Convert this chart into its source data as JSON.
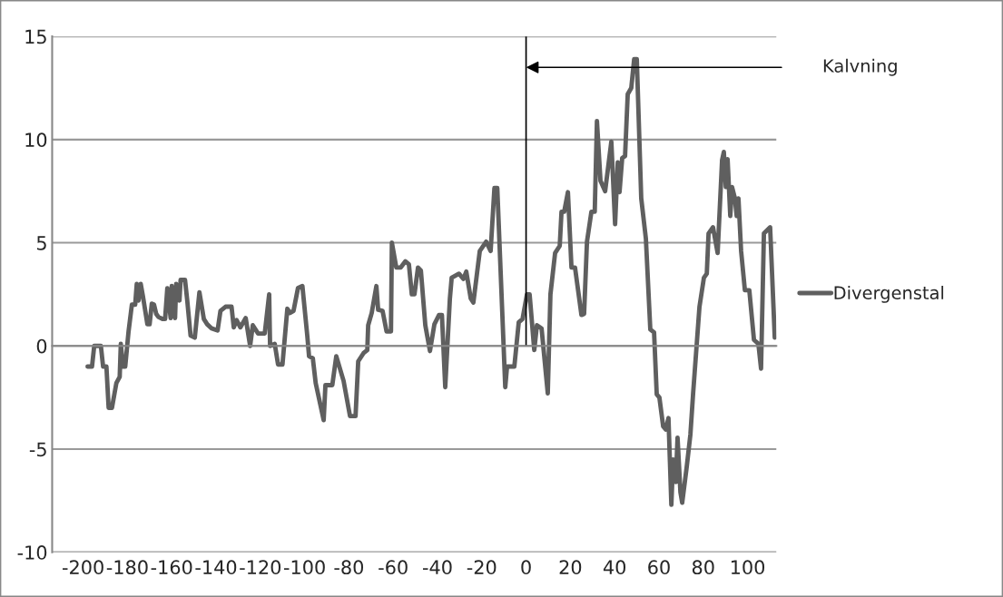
{
  "chart_data": {
    "type": "line",
    "x": [
      -198,
      -196,
      -195,
      -192,
      -191,
      -189.5,
      -188.5,
      -187,
      -185,
      -183.5,
      -183,
      -182,
      -181,
      -179.5,
      -178,
      -176.5,
      -175.8,
      -175,
      -174,
      -173,
      -171,
      -170,
      -169,
      -168,
      -167,
      -166,
      -164,
      -163,
      -162,
      -160.5,
      -160,
      -158.5,
      -158,
      -156.5,
      -156,
      -154,
      -153,
      -151.5,
      -149.6,
      -147.5,
      -145.5,
      -144,
      -142,
      -139.3,
      -138,
      -135.7,
      -133,
      -132,
      -130.7,
      -129,
      -126.6,
      -124.6,
      -123.4,
      -121,
      -118,
      -116,
      -115.6,
      -113.5,
      -112,
      -110,
      -107.8,
      -106.6,
      -105,
      -103,
      -101,
      -98.8,
      -98,
      -96.3,
      -95,
      -91.4,
      -90.6,
      -87.5,
      -85.7,
      -82.4,
      -79.5,
      -77,
      -75.8,
      -73.4,
      -71.7,
      -71.3,
      -69.7,
      -67.6,
      -66.8,
      -64.8,
      -63,
      -61,
      -60.6,
      -58.6,
      -56.6,
      -54.5,
      -52.9,
      -51.6,
      -50.4,
      -48.8,
      -47.5,
      -45.5,
      -43.4,
      -41.4,
      -39.3,
      -38,
      -36.5,
      -34.4,
      -33.6,
      -30.3,
      -28.3,
      -27,
      -25,
      -23.8,
      -20.9,
      -18,
      -16,
      -14.3,
      -13,
      -9.4,
      -8.6,
      -5.3,
      -3.3,
      -1.6,
      0.4,
      1.6,
      3.7,
      4.9,
      7,
      9.8,
      11,
      13.1,
      15.2,
      16,
      17.2,
      18.9,
      20.5,
      22.1,
      25,
      26.2,
      27.5,
      29.5,
      31,
      32,
      33.6,
      35.7,
      38.5,
      40.2,
      41.4,
      42.2,
      43.4,
      44.7,
      45.9,
      47.5,
      48.8,
      50,
      52,
      54.1,
      56.1,
      57.8,
      59,
      60.2,
      61.9,
      63.1,
      64.3,
      65.6,
      66.4,
      67.6,
      68.4,
      69.7,
      70.5,
      72.5,
      74.2,
      75.4,
      78.3,
      80.3,
      81.6,
      82.4,
      84.4,
      86.5,
      88.5,
      89.3,
      90.2,
      91,
      92.2,
      93,
      94.3,
      95.1,
      95.9,
      97.1,
      98.8,
      100.8,
      102.9,
      104.9,
      106.1,
      107.4,
      110.2,
      112.3
    ],
    "series": [
      {
        "name": "Divergenstal",
        "color": "#5f5f5f",
        "values": [
          -1.0,
          -1.0,
          0,
          0,
          -1.0,
          -1.0,
          -3.0,
          -3.0,
          -1.8,
          -1.5,
          0.1,
          -1.0,
          -1.0,
          0.7,
          2.0,
          2.0,
          3.0,
          2.2,
          3.0,
          2.4,
          1.05,
          1.05,
          2.05,
          2.0,
          1.55,
          1.4,
          1.3,
          1.3,
          2.8,
          1.35,
          2.9,
          1.35,
          3.0,
          2.2,
          3.2,
          3.2,
          2.2,
          0.5,
          0.4,
          2.6,
          1.3,
          1.05,
          0.85,
          0.75,
          1.7,
          1.9,
          1.9,
          0.9,
          1.25,
          0.9,
          1.35,
          0,
          1.0,
          0.6,
          0.6,
          2.5,
          0,
          0.1,
          -0.9,
          -0.9,
          1.8,
          1.6,
          1.7,
          2.8,
          2.9,
          0.5,
          -0.5,
          -0.6,
          -1.8,
          -3.6,
          -1.9,
          -1.9,
          -0.5,
          -1.7,
          -3.4,
          -3.4,
          -0.75,
          -0.35,
          -0.2,
          1.0,
          1.6,
          2.9,
          1.75,
          1.7,
          0.7,
          0.7,
          5.0,
          3.8,
          3.8,
          4.1,
          3.95,
          2.5,
          2.5,
          3.8,
          3.65,
          1.0,
          -0.25,
          1.05,
          1.5,
          1.5,
          -2.0,
          2.3,
          3.3,
          3.5,
          3.25,
          3.6,
          2.3,
          2.1,
          4.6,
          5.05,
          4.6,
          7.65,
          7.65,
          -2.0,
          -1.0,
          -1.0,
          1.15,
          1.3,
          2.5,
          2.5,
          -0.2,
          1.0,
          0.85,
          -2.3,
          2.5,
          4.5,
          4.85,
          6.5,
          6.5,
          7.45,
          3.8,
          3.8,
          1.5,
          1.55,
          5.05,
          6.5,
          6.5,
          10.9,
          8.0,
          7.5,
          9.9,
          5.9,
          8.9,
          7.45,
          9.1,
          9.2,
          12.2,
          12.5,
          13.9,
          13.9,
          7.15,
          5.2,
          0.8,
          0.65,
          -2.35,
          -2.5,
          -3.9,
          -4.05,
          -3.5,
          -7.7,
          -5.5,
          -6.6,
          -4.45,
          -7.1,
          -7.6,
          -5.9,
          -4.3,
          -2.35,
          1.9,
          3.3,
          3.5,
          5.45,
          5.75,
          4.5,
          9.0,
          9.4,
          7.7,
          9.05,
          6.3,
          7.7,
          7.15,
          6.3,
          7.15,
          4.6,
          2.7,
          2.7,
          0.3,
          0.1,
          -1.1,
          5.45,
          5.75,
          0.4
        ]
      }
    ],
    "xlim": [
      -214,
      113
    ],
    "xticks": [
      -200,
      -180,
      -160,
      -140,
      -120,
      -100,
      -80,
      -60,
      -40,
      -20,
      0,
      20,
      40,
      60,
      80,
      100
    ],
    "ylim": [
      -10,
      15
    ],
    "yticks": [
      -10,
      -5,
      0,
      5,
      10,
      15
    ],
    "grid": "y",
    "legend": "right",
    "marker": "none",
    "line_style": "solid",
    "ref_lines": [
      {
        "axis": "x",
        "value": 0,
        "color": "#000000",
        "label": "Kalvning"
      }
    ]
  }
}
